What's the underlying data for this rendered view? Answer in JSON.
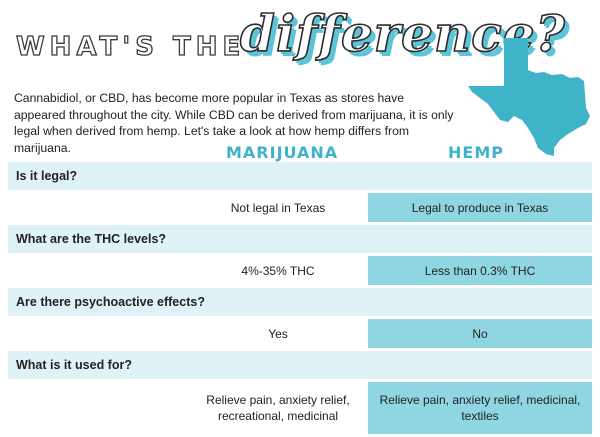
{
  "header": {
    "title_plain": "WHAT'S THE",
    "title_script": "difference?"
  },
  "intro": "Cannabidiol, or CBD, has become more popular in Texas as stores have appeared throughout the city. While CBD can be derived from marijuana, it is only legal when derived from hemp. Let's take a look at how hemp differs from marijuana.",
  "columns": {
    "marijuana": "MARIJUANA",
    "hemp": "HEMP"
  },
  "rows": [
    {
      "question": "Is it legal?",
      "marijuana": "Not legal in Texas",
      "hemp": "Legal to produce in Texas"
    },
    {
      "question": "What are the THC levels?",
      "marijuana": "4%-35% THC",
      "hemp": "Less than 0.3% THC"
    },
    {
      "question": "Are there psychoactive effects?",
      "marijuana": "Yes",
      "hemp": "No"
    },
    {
      "question": "What is it used for?",
      "marijuana": "Relieve pain, anxiety relief, recreational, medicinal",
      "hemp": "Relieve pain, anxiety relief, medicinal, textiles"
    }
  ],
  "colors": {
    "accent": "#5cc4d6",
    "question_bg": "#dff3f6",
    "hemp_bg": "#8fd6e2",
    "texas": "#3fb3c8"
  },
  "icons": {
    "state": "texas-map-icon"
  }
}
